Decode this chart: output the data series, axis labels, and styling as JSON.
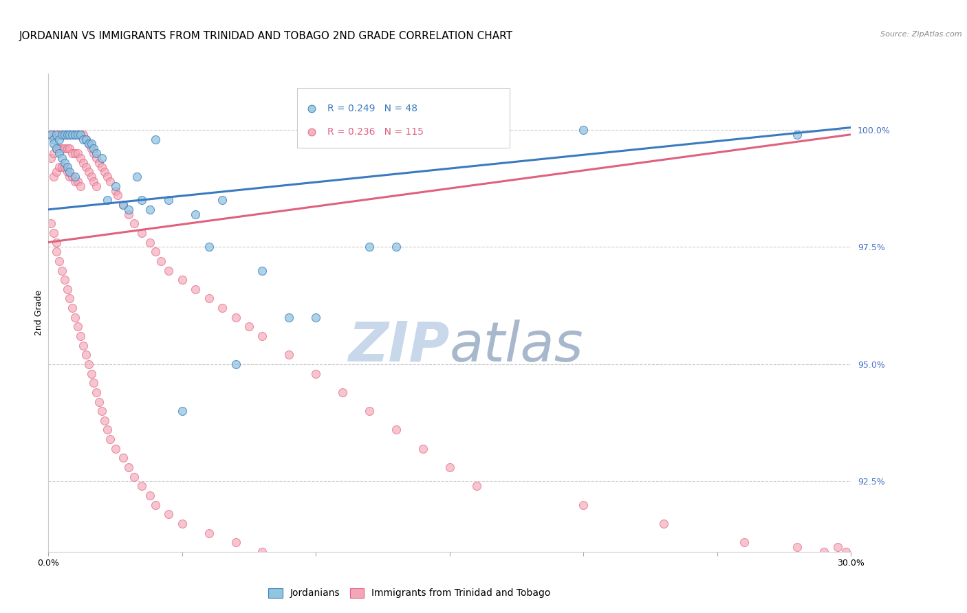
{
  "title": "JORDANIAN VS IMMIGRANTS FROM TRINIDAD AND TOBAGO 2ND GRADE CORRELATION CHART",
  "source_text": "Source: ZipAtlas.com",
  "ylabel": "2nd Grade",
  "x_min": 0.0,
  "x_max": 0.3,
  "y_min": 0.91,
  "y_max": 1.012,
  "yticks": [
    0.925,
    0.95,
    0.975,
    1.0
  ],
  "ytick_labels": [
    "92.5%",
    "95.0%",
    "97.5%",
    "100.0%"
  ],
  "xticks": [
    0.0,
    0.05,
    0.1,
    0.15,
    0.2,
    0.25,
    0.3
  ],
  "xtick_labels": [
    "0.0%",
    "",
    "",
    "",
    "",
    "",
    "30.0%"
  ],
  "legend_blue_label": "R = 0.249   N = 48",
  "legend_pink_label": "R = 0.236   N = 115",
  "blue_color": "#92c5de",
  "pink_color": "#f4a6b8",
  "blue_line_color": "#3a7abf",
  "pink_line_color": "#e0607e",
  "title_fontsize": 11,
  "axis_label_fontsize": 9,
  "tick_fontsize": 9,
  "watermark_zip": "ZIP",
  "watermark_atlas": "atlas",
  "watermark_color_zip": "#c8d8ea",
  "watermark_color_atlas": "#a8b8cc",
  "background_color": "#ffffff",
  "blue_trend_x": [
    0.0,
    0.3
  ],
  "blue_trend_y": [
    0.983,
    1.0005
  ],
  "pink_trend_x": [
    0.0,
    0.3
  ],
  "pink_trend_y": [
    0.976,
    0.999
  ],
  "blue_scatter_x": [
    0.001,
    0.002,
    0.002,
    0.003,
    0.003,
    0.004,
    0.004,
    0.005,
    0.005,
    0.006,
    0.006,
    0.007,
    0.007,
    0.008,
    0.008,
    0.009,
    0.01,
    0.01,
    0.011,
    0.012,
    0.013,
    0.014,
    0.015,
    0.016,
    0.017,
    0.018,
    0.02,
    0.022,
    0.025,
    0.028,
    0.03,
    0.033,
    0.035,
    0.038,
    0.04,
    0.045,
    0.05,
    0.055,
    0.06,
    0.065,
    0.07,
    0.08,
    0.09,
    0.1,
    0.12,
    0.13,
    0.2,
    0.28
  ],
  "blue_scatter_y": [
    0.999,
    0.998,
    0.997,
    0.999,
    0.996,
    0.998,
    0.995,
    0.999,
    0.994,
    0.999,
    0.993,
    0.999,
    0.992,
    0.999,
    0.991,
    0.999,
    0.999,
    0.99,
    0.999,
    0.999,
    0.998,
    0.998,
    0.997,
    0.997,
    0.996,
    0.995,
    0.994,
    0.985,
    0.988,
    0.984,
    0.983,
    0.99,
    0.985,
    0.983,
    0.998,
    0.985,
    0.94,
    0.982,
    0.975,
    0.985,
    0.95,
    0.97,
    0.96,
    0.96,
    0.975,
    0.975,
    1.0,
    0.999
  ],
  "pink_scatter_x": [
    0.001,
    0.001,
    0.002,
    0.002,
    0.002,
    0.003,
    0.003,
    0.003,
    0.004,
    0.004,
    0.004,
    0.005,
    0.005,
    0.005,
    0.006,
    0.006,
    0.006,
    0.007,
    0.007,
    0.007,
    0.008,
    0.008,
    0.008,
    0.009,
    0.009,
    0.009,
    0.01,
    0.01,
    0.01,
    0.011,
    0.011,
    0.011,
    0.012,
    0.012,
    0.012,
    0.013,
    0.013,
    0.014,
    0.014,
    0.015,
    0.015,
    0.016,
    0.016,
    0.017,
    0.017,
    0.018,
    0.018,
    0.019,
    0.02,
    0.021,
    0.022,
    0.023,
    0.025,
    0.026,
    0.028,
    0.03,
    0.032,
    0.035,
    0.038,
    0.04,
    0.042,
    0.045,
    0.05,
    0.055,
    0.06,
    0.065,
    0.07,
    0.075,
    0.08,
    0.09,
    0.1,
    0.11,
    0.12,
    0.13,
    0.14,
    0.15,
    0.16,
    0.2,
    0.23,
    0.26,
    0.28,
    0.29,
    0.295,
    0.298,
    0.001,
    0.002,
    0.003,
    0.003,
    0.004,
    0.005,
    0.006,
    0.007,
    0.008,
    0.009,
    0.01,
    0.011,
    0.012,
    0.013,
    0.014,
    0.015,
    0.016,
    0.017,
    0.018,
    0.019,
    0.02,
    0.021,
    0.022,
    0.023,
    0.025,
    0.028,
    0.03,
    0.032,
    0.035,
    0.038,
    0.04,
    0.045,
    0.05,
    0.06,
    0.07,
    0.08
  ],
  "pink_scatter_y": [
    0.999,
    0.994,
    0.999,
    0.995,
    0.99,
    0.999,
    0.996,
    0.991,
    0.999,
    0.996,
    0.992,
    0.999,
    0.996,
    0.992,
    0.999,
    0.996,
    0.992,
    0.999,
    0.996,
    0.991,
    0.999,
    0.996,
    0.99,
    0.999,
    0.995,
    0.99,
    0.999,
    0.995,
    0.989,
    0.999,
    0.995,
    0.989,
    0.999,
    0.994,
    0.988,
    0.999,
    0.993,
    0.998,
    0.992,
    0.997,
    0.991,
    0.996,
    0.99,
    0.995,
    0.989,
    0.994,
    0.988,
    0.993,
    0.992,
    0.991,
    0.99,
    0.989,
    0.987,
    0.986,
    0.984,
    0.982,
    0.98,
    0.978,
    0.976,
    0.974,
    0.972,
    0.97,
    0.968,
    0.966,
    0.964,
    0.962,
    0.96,
    0.958,
    0.956,
    0.952,
    0.948,
    0.944,
    0.94,
    0.936,
    0.932,
    0.928,
    0.924,
    0.92,
    0.916,
    0.912,
    0.911,
    0.91,
    0.911,
    0.91,
    0.98,
    0.978,
    0.976,
    0.974,
    0.972,
    0.97,
    0.968,
    0.966,
    0.964,
    0.962,
    0.96,
    0.958,
    0.956,
    0.954,
    0.952,
    0.95,
    0.948,
    0.946,
    0.944,
    0.942,
    0.94,
    0.938,
    0.936,
    0.934,
    0.932,
    0.93,
    0.928,
    0.926,
    0.924,
    0.922,
    0.92,
    0.918,
    0.916,
    0.914,
    0.912,
    0.91
  ]
}
